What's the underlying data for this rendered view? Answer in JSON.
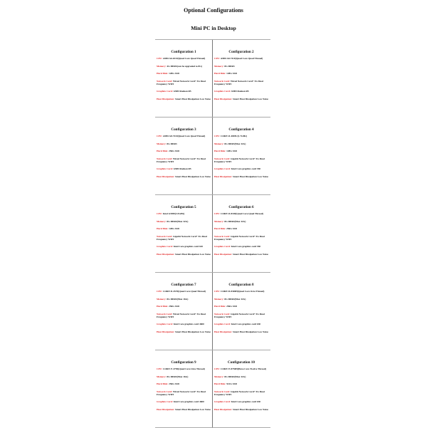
{
  "title": "Optional Configurations",
  "subtitle": "Mini PC in Desktop",
  "labels": {
    "cpu": "CPU: ",
    "memory": "Memory: ",
    "disk": "Hard Disk: ",
    "network": "Network Card: ",
    "graphics": "Graphics Card: ",
    "heat": "Heat Dissipation: "
  },
  "configs": [
    {
      "name": "Configuration 1",
      "cpu": "AMD A6-6310(Quad Core Quad Thread)",
      "memory": "4G DDR3(can be upgraded to 8G)",
      "disk": "128G SSD",
      "network": "Wired Network Card+ 5G Dual Frequency WIFI",
      "graphics": "AMD Radeon R5",
      "heat": "Smart Heat Dissipation Low Noise"
    },
    {
      "name": "Configuration 2",
      "cpu": "AMD A8-7410(Quad Core Quad Thread)",
      "memory": "8G DDR3",
      "disk": "128G SSD",
      "network": "Wired Network Card+ 5G Dual Frequency WIFI",
      "graphics": "AMD Radeon R5",
      "heat": "Smart Heat Dissipation Low Noise"
    },
    {
      "name": "Configuration 3",
      "cpu": "AMD A8-7410(Quad Core Quad Thread)",
      "memory": "8G DDR3",
      "disk": "256G SSD",
      "network": "Wired Network Card+ 5G Dual Frequency WIFI",
      "graphics": "AMD Radeon R5",
      "heat": "Smart Heat Dissipation Low Noise"
    },
    {
      "name": "Configuration 4",
      "cpu": "CORE i3-4005U(1.7GHz)",
      "memory": "8G DDR3(Max 32G)",
      "disk": "128G SSD",
      "network": "Gigabit Network Card+ 5G Dual Frequency WIFI",
      "graphics": "Intel Core graphics card 550",
      "heat": "Smart Heat Dissipation Low Noise"
    },
    {
      "name": "Configuration 5",
      "cpu": "Intel G5905(3.5GHz)",
      "memory": "8G DDR4(Max 32G)",
      "disk": "128G SSD",
      "network": "Gigabit Network Card+ 5G Dual Frequency WIFI",
      "graphics": "Intel Core graphics card 610",
      "heat": "Smart Heat Dissipation Low Noise"
    },
    {
      "name": "Configuration 6",
      "cpu": "CORE i3-8100(Quad Core Quad Thread)",
      "memory": "8G DDR4(Max 32G)",
      "disk": "256G SSD",
      "network": "Gigabit Network Card+ 5G Dual Frequency WIFI",
      "graphics": "Intel Core graphics card 550",
      "heat": "Smart Heat Dissipation Low Noise"
    },
    {
      "name": "Configuration 7",
      "cpu": "CORE i5-4570(Quad Core Quad Thread)",
      "memory": "8G DDR3(Max 16G)",
      "disk": "256G SSD",
      "network": "Wired Network Card+ 5G Dual Frequency WIFI",
      "graphics": "Intel Core graphics card 4600",
      "heat": "Smart Heat Dissipation Low Noise"
    },
    {
      "name": "Configuration 8",
      "cpu": "CORE i5-8300H(Quad Core Octa Thread)",
      "memory": "8G DDR4(Max 32G)",
      "disk": "256G SSD",
      "network": "Gigabit Network Card+ 5G Dual Frequency WIFI",
      "graphics": "Intel Core graphics card 630",
      "heat": "Smart Heat Dissipation Low Noise"
    },
    {
      "name": "Configuration 9",
      "cpu": "CORE i7-4790(Quad Core Octa Thread)",
      "memory": "8G DDR3(Max 16G)",
      "disk": "256G SSD",
      "network": "Wired Network Card+ 5G Dual Frequency WIFI",
      "graphics": "Intel Core graphics card 4600",
      "heat": "Smart Heat Dissipation Low Noise"
    },
    {
      "name": "Configuration 10",
      "cpu": "CORE i7-8750H(Hexa Core Twelve Thread)",
      "memory": "8G DDR4(Max 32G)",
      "disk": "512G SSD",
      "network": "Gigabit Network Card+ 5G Dual Frequency WIFI",
      "graphics": "Intel Core graphics card 630",
      "heat": "Smart Heat Dissipation Low Noise"
    }
  ]
}
